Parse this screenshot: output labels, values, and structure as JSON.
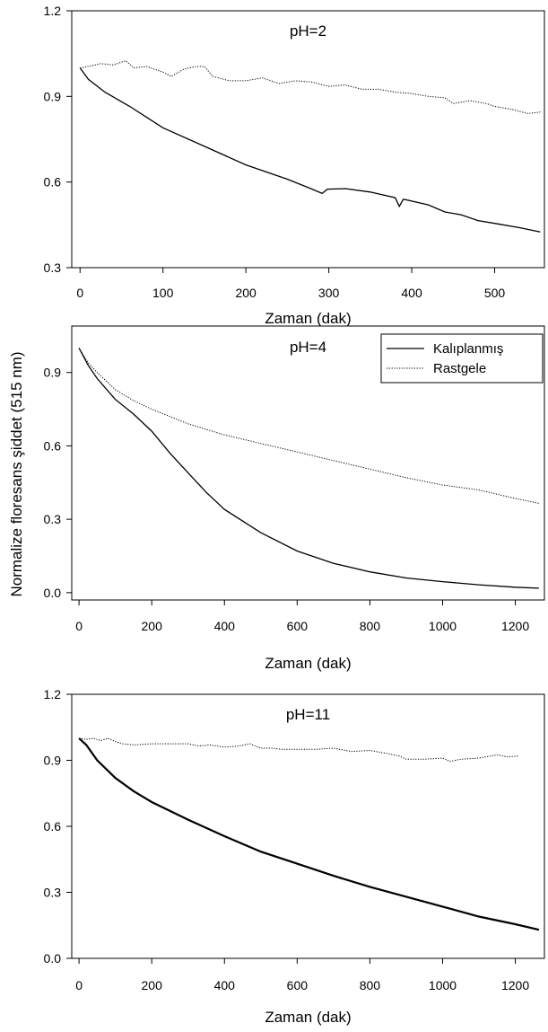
{
  "ylabel": "Normalize floresans şiddet (515 nm)",
  "chart_data": [
    {
      "type": "line",
      "title": "pH=2",
      "xlabel": "Zaman (dak)",
      "xlim": [
        -10,
        560
      ],
      "ylim": [
        0.3,
        1.2
      ],
      "x_ticks": [
        0,
        100,
        200,
        300,
        400,
        500
      ],
      "y_ticks": [
        0.3,
        0.6,
        0.9,
        1.2
      ],
      "legend": null,
      "series": [
        {
          "name": "Kalıplanmış",
          "style": "solid",
          "points": [
            [
              0,
              1.0
            ],
            [
              10,
              0.96
            ],
            [
              30,
              0.915
            ],
            [
              60,
              0.865
            ],
            [
              100,
              0.79
            ],
            [
              150,
              0.725
            ],
            [
              200,
              0.66
            ],
            [
              250,
              0.61
            ],
            [
              280,
              0.575
            ],
            [
              292,
              0.56
            ],
            [
              298,
              0.575
            ],
            [
              320,
              0.577
            ],
            [
              350,
              0.565
            ],
            [
              380,
              0.545
            ],
            [
              385,
              0.515
            ],
            [
              390,
              0.54
            ],
            [
              420,
              0.52
            ],
            [
              440,
              0.495
            ],
            [
              460,
              0.485
            ],
            [
              480,
              0.465
            ],
            [
              500,
              0.455
            ],
            [
              530,
              0.44
            ],
            [
              555,
              0.425
            ]
          ]
        },
        {
          "name": "Rastgele",
          "style": "dotted",
          "points": [
            [
              0,
              1.0
            ],
            [
              10,
              1.005
            ],
            [
              25,
              1.015
            ],
            [
              40,
              1.01
            ],
            [
              55,
              1.025
            ],
            [
              65,
              1.0
            ],
            [
              80,
              1.005
            ],
            [
              100,
              0.985
            ],
            [
              110,
              0.97
            ],
            [
              125,
              0.995
            ],
            [
              140,
              1.005
            ],
            [
              150,
              1.005
            ],
            [
              160,
              0.97
            ],
            [
              180,
              0.955
            ],
            [
              200,
              0.955
            ],
            [
              220,
              0.965
            ],
            [
              240,
              0.945
            ],
            [
              260,
              0.955
            ],
            [
              280,
              0.95
            ],
            [
              300,
              0.935
            ],
            [
              320,
              0.94
            ],
            [
              340,
              0.925
            ],
            [
              360,
              0.925
            ],
            [
              380,
              0.915
            ],
            [
              400,
              0.91
            ],
            [
              420,
              0.9
            ],
            [
              440,
              0.895
            ],
            [
              450,
              0.875
            ],
            [
              470,
              0.885
            ],
            [
              490,
              0.875
            ],
            [
              500,
              0.865
            ],
            [
              520,
              0.855
            ],
            [
              540,
              0.84
            ],
            [
              555,
              0.845
            ]
          ]
        }
      ]
    },
    {
      "type": "line",
      "title": "pH=4",
      "xlabel": "Zaman (dak)",
      "xlim": [
        -20,
        1280
      ],
      "ylim": [
        -0.03,
        1.09
      ],
      "x_ticks": [
        0,
        200,
        400,
        600,
        800,
        1000,
        1200
      ],
      "y_ticks": [
        0.0,
        0.3,
        0.6,
        0.9
      ],
      "legend": {
        "position": "top-right",
        "entries": [
          {
            "label": "Kalıplanmış",
            "style": "solid"
          },
          {
            "label": "Rastgele",
            "style": "dotted"
          }
        ]
      },
      "series": [
        {
          "name": "Kalıplanmış",
          "style": "solid",
          "points": [
            [
              0,
              1.0
            ],
            [
              25,
              0.93
            ],
            [
              50,
              0.875
            ],
            [
              100,
              0.79
            ],
            [
              150,
              0.73
            ],
            [
              200,
              0.66
            ],
            [
              250,
              0.57
            ],
            [
              300,
              0.49
            ],
            [
              350,
              0.41
            ],
            [
              400,
              0.34
            ],
            [
              500,
              0.245
            ],
            [
              600,
              0.17
            ],
            [
              700,
              0.12
            ],
            [
              800,
              0.085
            ],
            [
              900,
              0.06
            ],
            [
              1000,
              0.045
            ],
            [
              1100,
              0.032
            ],
            [
              1200,
              0.022
            ],
            [
              1265,
              0.018
            ]
          ]
        },
        {
          "name": "Rastgele",
          "style": "dotted",
          "points": [
            [
              0,
              1.0
            ],
            [
              25,
              0.94
            ],
            [
              50,
              0.9
            ],
            [
              100,
              0.83
            ],
            [
              150,
              0.785
            ],
            [
              200,
              0.75
            ],
            [
              300,
              0.69
            ],
            [
              400,
              0.645
            ],
            [
              500,
              0.61
            ],
            [
              600,
              0.575
            ],
            [
              700,
              0.54
            ],
            [
              800,
              0.505
            ],
            [
              900,
              0.47
            ],
            [
              1000,
              0.44
            ],
            [
              1100,
              0.42
            ],
            [
              1200,
              0.385
            ],
            [
              1265,
              0.365
            ]
          ]
        }
      ]
    },
    {
      "type": "line",
      "title": "pH=11",
      "xlabel": "Zaman (dak)",
      "xlim": [
        -20,
        1280
      ],
      "ylim": [
        0.0,
        1.2
      ],
      "x_ticks": [
        0,
        200,
        400,
        600,
        800,
        1000,
        1200
      ],
      "y_ticks": [
        0.0,
        0.3,
        0.6,
        0.9,
        1.2
      ],
      "legend": null,
      "series": [
        {
          "name": "Kalıplanmış",
          "style": "solid-thick",
          "points": [
            [
              0,
              1.0
            ],
            [
              20,
              0.97
            ],
            [
              50,
              0.9
            ],
            [
              100,
              0.82
            ],
            [
              150,
              0.76
            ],
            [
              200,
              0.71
            ],
            [
              300,
              0.63
            ],
            [
              400,
              0.555
            ],
            [
              500,
              0.485
            ],
            [
              600,
              0.43
            ],
            [
              700,
              0.375
            ],
            [
              800,
              0.325
            ],
            [
              900,
              0.28
            ],
            [
              1000,
              0.235
            ],
            [
              1100,
              0.19
            ],
            [
              1200,
              0.155
            ],
            [
              1265,
              0.13
            ]
          ]
        },
        {
          "name": "Rastgele",
          "style": "dotted",
          "points": [
            [
              0,
              1.0
            ],
            [
              20,
              0.995
            ],
            [
              40,
              1.0
            ],
            [
              60,
              0.99
            ],
            [
              80,
              1.0
            ],
            [
              100,
              0.985
            ],
            [
              120,
              0.975
            ],
            [
              150,
              0.97
            ],
            [
              200,
              0.975
            ],
            [
              250,
              0.975
            ],
            [
              300,
              0.975
            ],
            [
              330,
              0.965
            ],
            [
              360,
              0.97
            ],
            [
              400,
              0.96
            ],
            [
              440,
              0.965
            ],
            [
              470,
              0.975
            ],
            [
              500,
              0.955
            ],
            [
              530,
              0.955
            ],
            [
              560,
              0.95
            ],
            [
              600,
              0.95
            ],
            [
              650,
              0.95
            ],
            [
              700,
              0.955
            ],
            [
              750,
              0.94
            ],
            [
              800,
              0.945
            ],
            [
              850,
              0.93
            ],
            [
              880,
              0.92
            ],
            [
              900,
              0.905
            ],
            [
              950,
              0.905
            ],
            [
              1000,
              0.91
            ],
            [
              1020,
              0.895
            ],
            [
              1050,
              0.905
            ],
            [
              1100,
              0.91
            ],
            [
              1150,
              0.925
            ],
            [
              1180,
              0.915
            ],
            [
              1210,
              0.92
            ]
          ]
        }
      ]
    }
  ]
}
